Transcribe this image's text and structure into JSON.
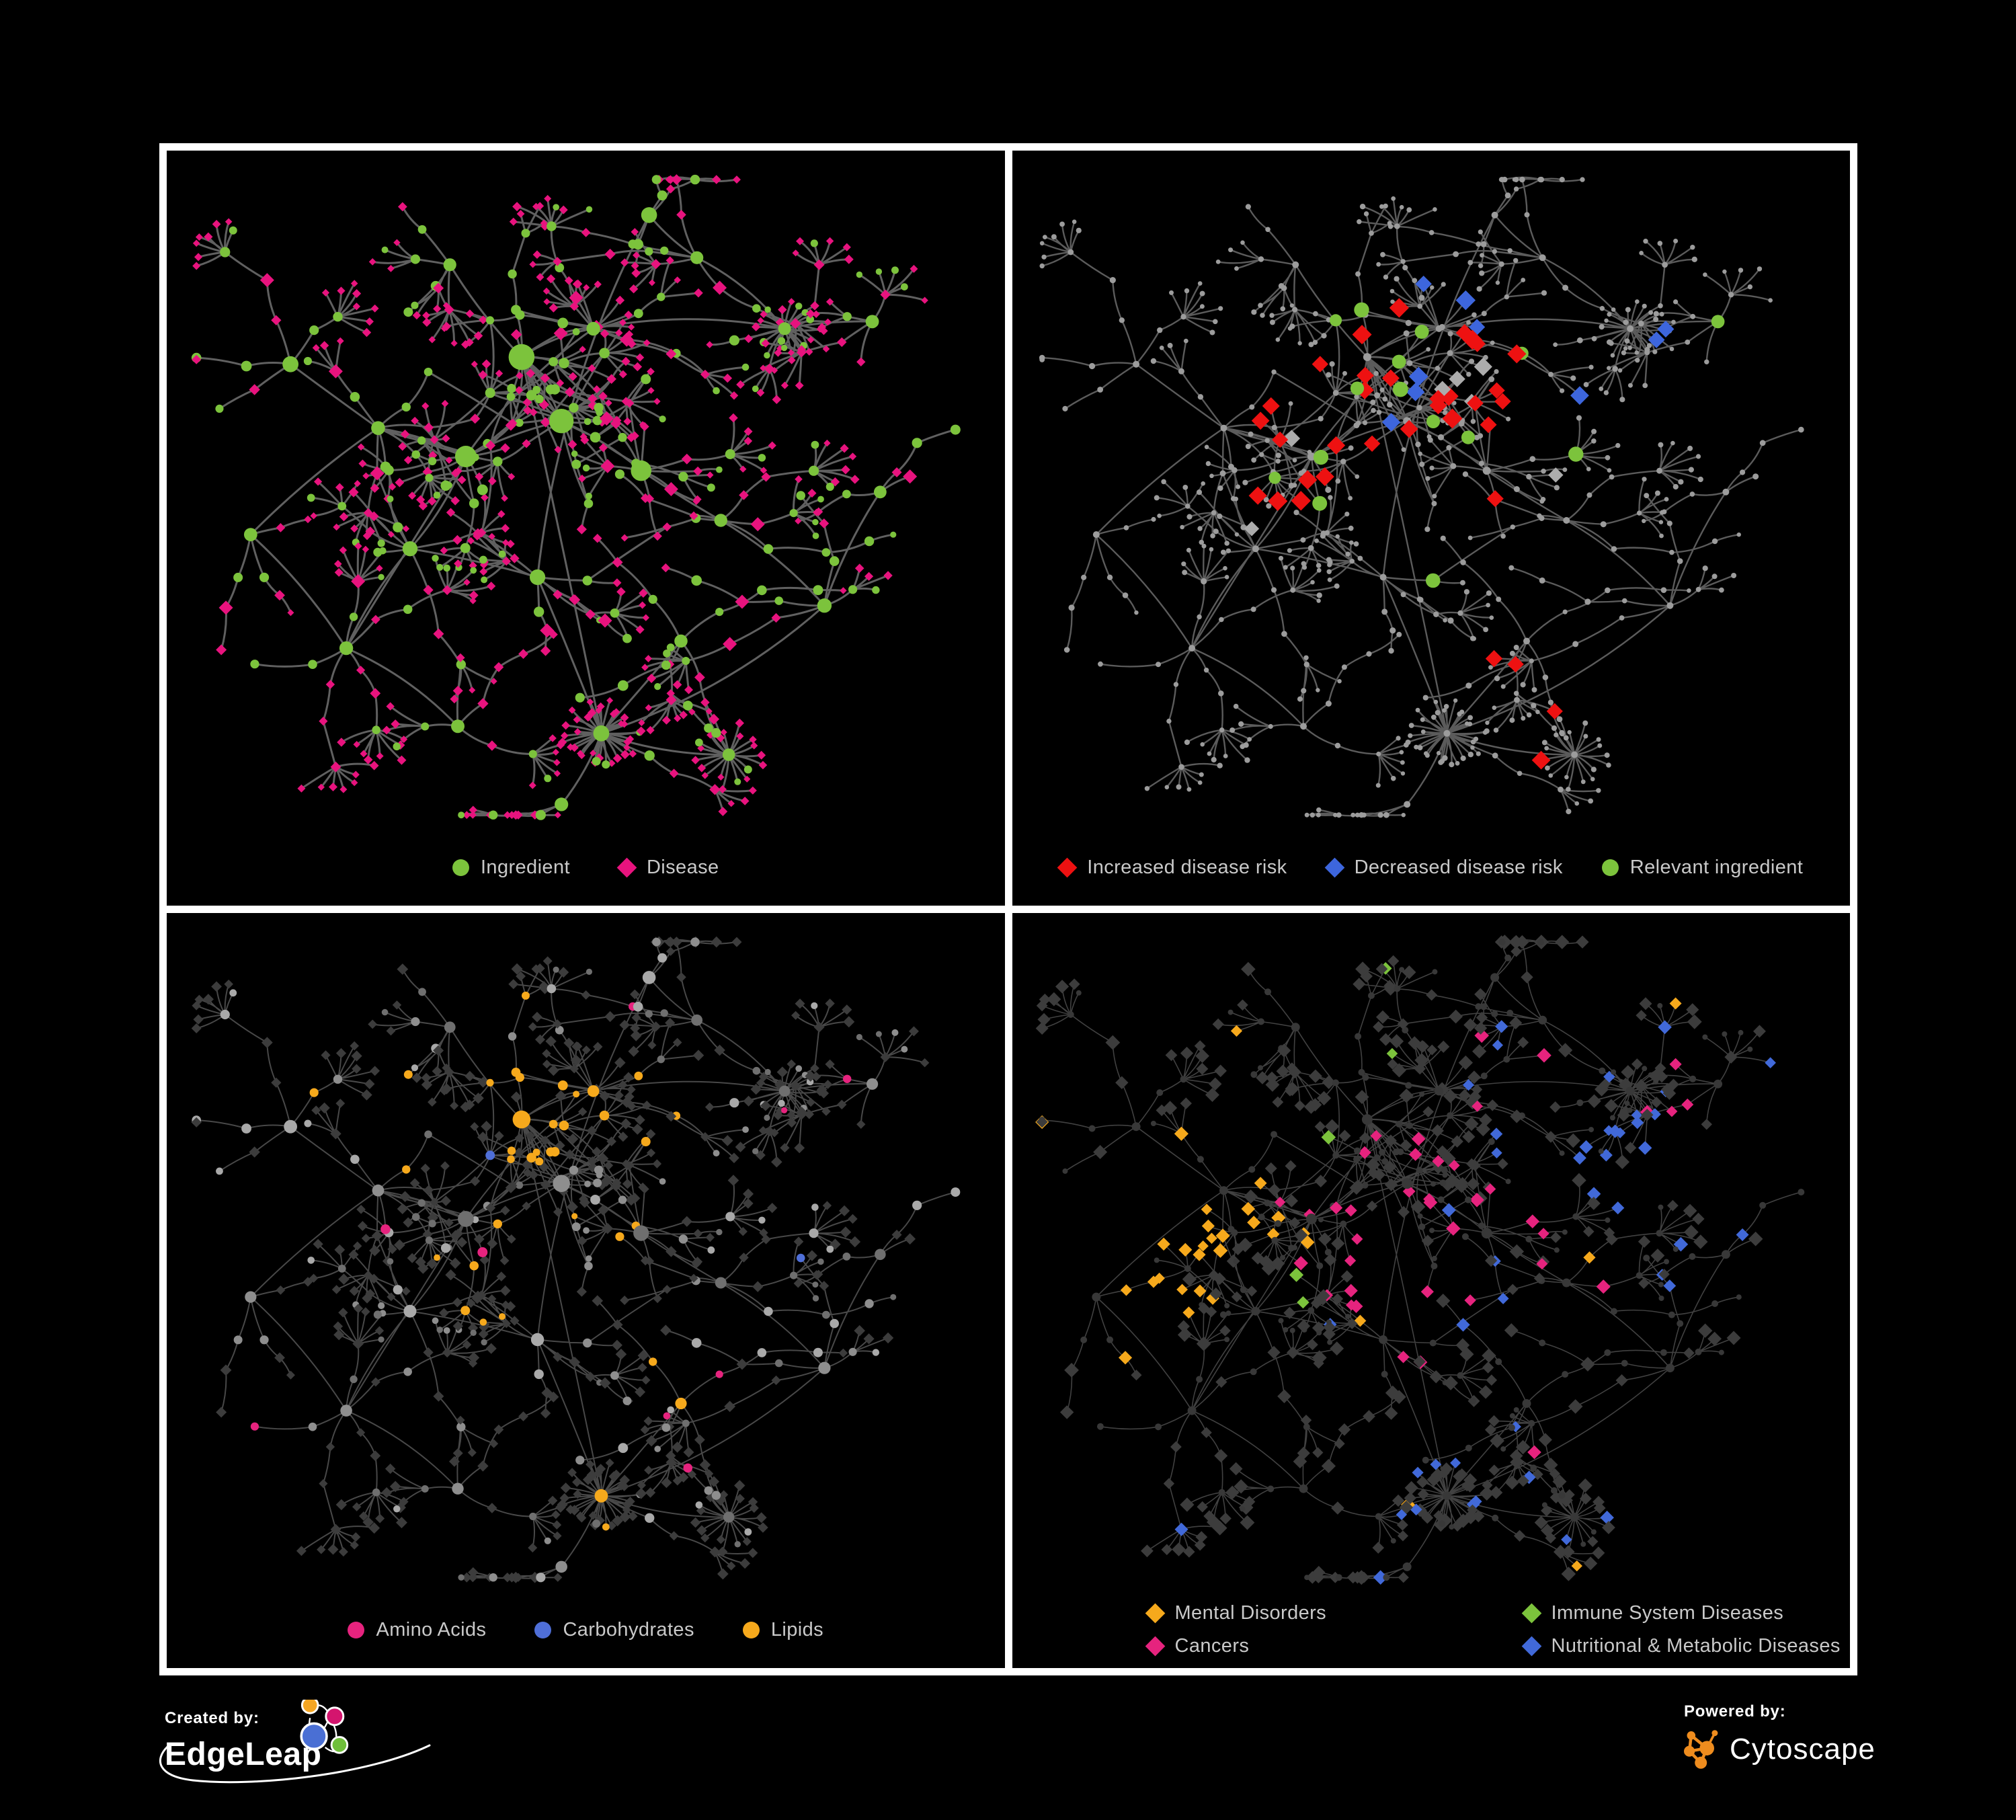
{
  "branding": {
    "created_by_label": "Created by:",
    "created_by_name": "EdgeLeap",
    "powered_by_label": "Powered by:",
    "powered_by_name": "Cytoscape"
  },
  "panels": [
    {
      "name": "ingredient-disease-network",
      "legend": [
        {
          "label": "Ingredient",
          "shape": "circle",
          "color": "#7CC33C"
        },
        {
          "label": "Disease",
          "shape": "diamond",
          "color": "#E8137E"
        }
      ]
    },
    {
      "name": "disease-risk-network",
      "legend": [
        {
          "label": "Increased disease risk",
          "shape": "diamond",
          "color": "#EE1111"
        },
        {
          "label": "Decreased disease risk",
          "shape": "diamond",
          "color": "#3D66DD"
        },
        {
          "label": "Relevant ingredient",
          "shape": "circle",
          "color": "#7CC33C"
        }
      ]
    },
    {
      "name": "ingredient-class-network",
      "legend": [
        {
          "label": "Amino Acids",
          "shape": "circle",
          "color": "#E6237E"
        },
        {
          "label": "Carbohydrates",
          "shape": "circle",
          "color": "#4F6FD8"
        },
        {
          "label": "Lipids",
          "shape": "circle",
          "color": "#F6A91C"
        }
      ]
    },
    {
      "name": "disease-category-network",
      "legend": [
        {
          "label": "Mental Disorders",
          "shape": "diamond",
          "color": "#F6A91C"
        },
        {
          "label": "Immune System Diseases",
          "shape": "diamond",
          "color": "#7CC33C"
        },
        {
          "label": "Cancers",
          "shape": "diamond",
          "color": "#E6237E"
        },
        {
          "label": "Nutritional & Metabolic Diseases",
          "shape": "diamond",
          "color": "#4169D9"
        }
      ]
    }
  ],
  "style": {
    "background": "#000000",
    "panel_border": "#FFFFFF",
    "legend_text": "#C9C9C9",
    "p1": {
      "edge": "#6A6A6A",
      "ingredient": "#7CC33C",
      "disease": "#E8137E"
    },
    "p2": {
      "edge": "#6B6B6B",
      "node": "#9C9C9C",
      "red": "#EE1111",
      "blue": "#3D66DD",
      "silver": "#ACACAC",
      "green": "#7CC33C"
    },
    "p3": {
      "edge": "#8F8F8F",
      "disease": "#3C3C3C",
      "gray_light": "#A9A9A9",
      "gray_mid": "#8E8E8E",
      "gray_dark": "#6F6F6F",
      "amino": "#E6237E",
      "carb": "#4F6FD8",
      "lipid": "#F6A91C"
    },
    "p4": {
      "edge": "#A3A3A3",
      "ingredient": "#383838",
      "disease": "#3C3C3C",
      "mental": "#F6A91C",
      "immune": "#7CC33C",
      "cancer": "#E6237E",
      "nutri": "#4169D9"
    },
    "edgeleap_logo_colors": {
      "orange": "#F5A623",
      "magenta": "#D4156E",
      "blue": "#4A6FD4",
      "green": "#6FBF3A"
    },
    "cytoscape_orange": "#EE8C1E"
  },
  "network": {
    "seed": 20
  }
}
